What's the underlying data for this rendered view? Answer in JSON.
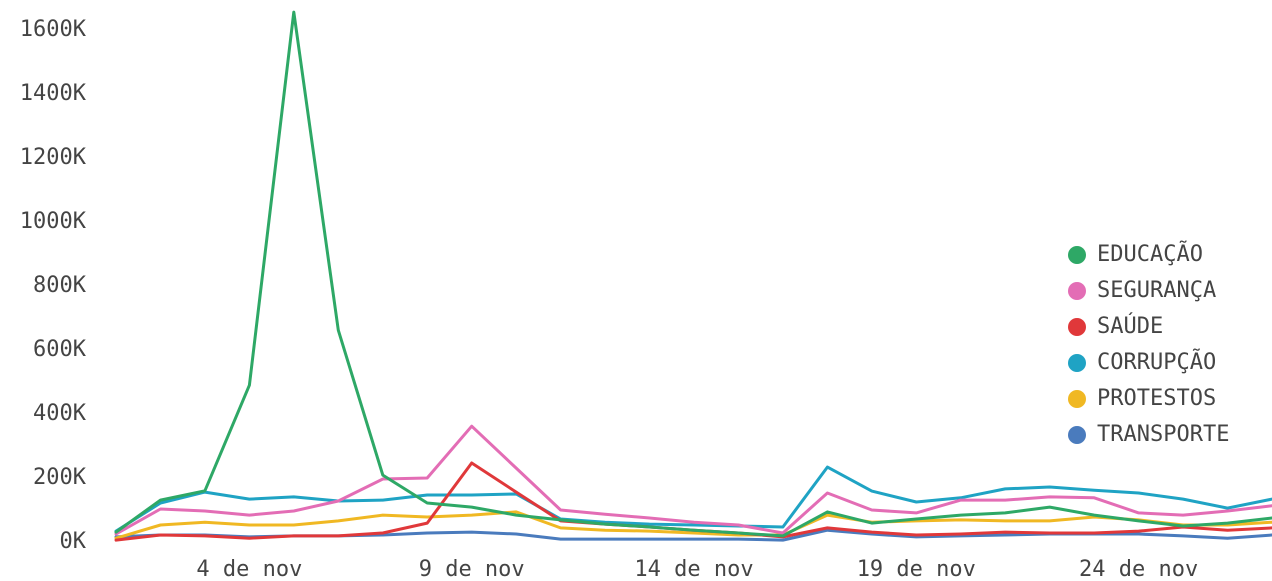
{
  "chart_data": {
    "type": "line",
    "categories": [
      null,
      null,
      null,
      "4 de nov",
      null,
      null,
      null,
      null,
      "9 de nov",
      null,
      null,
      null,
      null,
      "14 de nov",
      null,
      null,
      null,
      null,
      "19 de nov",
      null,
      null,
      null,
      null,
      "24 de nov",
      null,
      null,
      null
    ],
    "ylim": [
      0,
      1600000
    ],
    "yticks": [
      {
        "value": 0,
        "label": "0K"
      },
      {
        "value": 200000,
        "label": "200K"
      },
      {
        "value": 400000,
        "label": "400K"
      },
      {
        "value": 600000,
        "label": "600K"
      },
      {
        "value": 800000,
        "label": "800K"
      },
      {
        "value": 1000000,
        "label": "1000K"
      },
      {
        "value": 1200000,
        "label": "1200K"
      },
      {
        "value": 1400000,
        "label": "1400K"
      },
      {
        "value": 1600000,
        "label": "1600K"
      }
    ],
    "grid": false,
    "legend": "right",
    "series": [
      {
        "name": "EDUCAÇÃO",
        "color": "#2ea866",
        "values": [
          31000,
          131000,
          160000,
          490000,
          1656000,
          662000,
          209000,
          122000,
          109000,
          84000,
          69000,
          56000,
          47000,
          37000,
          28000,
          19000,
          94000,
          59000,
          72000,
          84000,
          91000,
          109000,
          84000,
          66000,
          50000,
          59000,
          75000
        ]
      },
      {
        "name": "SEGURANÇA",
        "color": "#e36db5",
        "values": [
          25000,
          103000,
          97000,
          84000,
          97000,
          128000,
          197000,
          200000,
          362000,
          231000,
          100000,
          87000,
          75000,
          62000,
          53000,
          28000,
          153000,
          100000,
          91000,
          131000,
          131000,
          141000,
          138000,
          91000,
          84000,
          97000,
          113000
        ]
      },
      {
        "name": "SAÚDE",
        "color": "#e0383a",
        "values": [
          6000,
          22000,
          19000,
          12000,
          19000,
          19000,
          28000,
          59000,
          247000,
          156000,
          66000,
          56000,
          47000,
          37000,
          28000,
          16000,
          44000,
          31000,
          22000,
          25000,
          31000,
          28000,
          28000,
          34000,
          47000,
          37000,
          44000
        ]
      },
      {
        "name": "CORRUPÇÃO",
        "color": "#1fa3c4",
        "values": [
          34000,
          122000,
          156000,
          134000,
          141000,
          128000,
          131000,
          147000,
          147000,
          150000,
          72000,
          62000,
          56000,
          53000,
          50000,
          47000,
          234000,
          159000,
          125000,
          138000,
          166000,
          172000,
          162000,
          153000,
          134000,
          106000,
          134000
        ]
      },
      {
        "name": "PROTESTOS",
        "color": "#f0b823",
        "values": [
          12000,
          53000,
          62000,
          53000,
          53000,
          66000,
          84000,
          78000,
          84000,
          94000,
          44000,
          37000,
          34000,
          28000,
          22000,
          22000,
          84000,
          62000,
          66000,
          69000,
          66000,
          66000,
          78000,
          69000,
          53000,
          53000,
          62000
        ]
      },
      {
        "name": "TRANSPORTE",
        "color": "#4a7bbd",
        "values": [
          16000,
          22000,
          22000,
          16000,
          19000,
          19000,
          22000,
          28000,
          31000,
          25000,
          9000,
          9000,
          9000,
          9000,
          9000,
          6000,
          37000,
          25000,
          16000,
          19000,
          22000,
          25000,
          25000,
          25000,
          19000,
          12000,
          22000
        ]
      }
    ]
  }
}
